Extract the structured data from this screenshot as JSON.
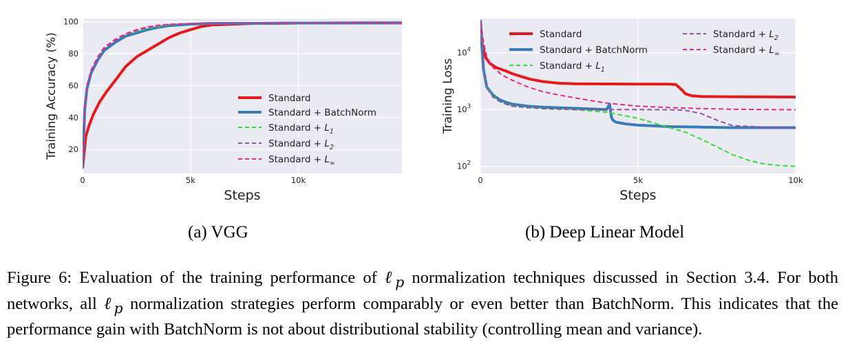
{
  "chart_data": [
    {
      "type": "line",
      "subcaption": "(a) VGG",
      "xlabel": "Steps",
      "ylabel": "Training Accuracy (%)",
      "xlim": [
        0,
        14800
      ],
      "ylim": [
        5,
        102
      ],
      "xticks": [
        0,
        5000,
        10000
      ],
      "xtick_labels": [
        "0",
        "5k",
        "10k"
      ],
      "yticks": [
        20,
        40,
        60,
        80,
        100
      ],
      "ytick_labels": [
        "20",
        "40",
        "60",
        "80",
        "100"
      ],
      "grid": true,
      "legend_position": "lower-right",
      "series": [
        {
          "name": "Standard",
          "color": "#e41a1c",
          "style": "solid",
          "width": 4,
          "legend_sub": "",
          "x": [
            0,
            150,
            300,
            500,
            800,
            1100,
            1500,
            2000,
            2500,
            3000,
            3500,
            4000,
            4500,
            5000,
            5500,
            6000,
            7000,
            8000,
            9000,
            10000,
            11000,
            12000,
            13000,
            14000,
            14800
          ],
          "y": [
            8,
            28,
            35,
            42,
            50,
            56,
            63,
            72,
            78,
            82,
            86,
            90,
            93,
            95,
            97,
            98,
            98.5,
            99,
            99,
            99.2,
            99.2,
            99.3,
            99.3,
            99.3,
            99.3
          ]
        },
        {
          "name": "Standard + BatchNorm",
          "color": "#377eb8",
          "style": "solid",
          "width": 4,
          "legend_sub": "",
          "x": [
            0,
            100,
            200,
            400,
            700,
            1000,
            1500,
            2000,
            2500,
            3000,
            3500,
            4000,
            4500,
            5000,
            6000,
            8000,
            10000,
            12000,
            14800
          ],
          "y": [
            8,
            45,
            58,
            68,
            76,
            82,
            87,
            91,
            93,
            95,
            96.5,
            97.5,
            98,
            98.5,
            99,
            99,
            99.2,
            99.2,
            99.3
          ]
        },
        {
          "name": "Standard + ",
          "color": "#33dd33",
          "style": "dashed",
          "width": 2,
          "legend_sub": "1",
          "x": [
            0,
            100,
            200,
            400,
            700,
            1000,
            1500,
            2000,
            2500,
            3000,
            3500,
            4000,
            4500,
            5000,
            6000,
            8000,
            10000,
            12000,
            14800
          ],
          "y": [
            8,
            48,
            60,
            70,
            77,
            83,
            88,
            92,
            94,
            96,
            97,
            98,
            98.5,
            98.8,
            99,
            99,
            99.1,
            99.2,
            99.3
          ]
        },
        {
          "name": "Standard + ",
          "color": "#984ea3",
          "style": "dashed",
          "width": 2,
          "legend_sub": "2",
          "x": [
            0,
            100,
            200,
            400,
            700,
            1000,
            1500,
            2000,
            2500,
            3000,
            3500,
            4000,
            4500,
            5000,
            6000,
            8000,
            10000,
            12000,
            14800
          ],
          "y": [
            8,
            46,
            59,
            69,
            77,
            83,
            88,
            92,
            94.5,
            96.5,
            97.5,
            98.2,
            98.6,
            98.8,
            99,
            99.1,
            99.2,
            99.2,
            99.3
          ]
        },
        {
          "name": "Standard + ",
          "color": "#e7298a",
          "style": "dashed",
          "width": 2,
          "legend_sub": "∞",
          "x": [
            0,
            100,
            200,
            400,
            700,
            1000,
            1500,
            2000,
            2500,
            3000,
            3500,
            4000,
            4500,
            5000,
            6000,
            8000,
            10000,
            12000,
            14800
          ],
          "y": [
            8,
            47,
            60,
            70,
            78,
            84,
            89,
            92.5,
            95,
            96.8,
            97.8,
            98.4,
            98.7,
            98.9,
            99,
            99.1,
            99.2,
            99.3,
            99.3
          ]
        }
      ]
    },
    {
      "type": "line",
      "subcaption": "(b) Deep Linear Model",
      "xlabel": "Steps",
      "ylabel": "Training Loss",
      "yscale": "log",
      "xlim": [
        0,
        10000
      ],
      "ylim": [
        75,
        40000
      ],
      "xticks": [
        0,
        5000,
        10000
      ],
      "xtick_labels": [
        "0",
        "5k",
        "10k"
      ],
      "yticks": [
        100,
        1000,
        10000
      ],
      "ytick_labels": [
        "10",
        "10",
        "10"
      ],
      "ytick_exponents": [
        "2",
        "3",
        "4"
      ],
      "grid": true,
      "legend_position": "top",
      "series": [
        {
          "name": "Standard",
          "color": "#e41a1c",
          "style": "solid",
          "width": 4,
          "legend_sub": "",
          "x": [
            0,
            50,
            150,
            300,
            500,
            800,
            1000,
            1300,
            1600,
            2000,
            2500,
            3000,
            4000,
            5000,
            6000,
            6200,
            6400,
            6500,
            6700,
            7000,
            8000,
            9000,
            10000
          ],
          "y": [
            35000,
            15000,
            8500,
            6500,
            5500,
            4800,
            4300,
            3800,
            3400,
            3100,
            2900,
            2850,
            2820,
            2810,
            2800,
            2750,
            2200,
            1900,
            1750,
            1700,
            1680,
            1670,
            1660
          ]
        },
        {
          "name": "Standard + BatchNorm",
          "color": "#377eb8",
          "style": "solid",
          "width": 4,
          "legend_sub": "",
          "x": [
            0,
            50,
            100,
            200,
            400,
            600,
            800,
            1000,
            1500,
            2000,
            3000,
            4000,
            4100,
            4150,
            4200,
            4300,
            4600,
            5000,
            6000,
            7000,
            8000,
            9000,
            10000
          ],
          "y": [
            38000,
            12000,
            5000,
            2500,
            1800,
            1500,
            1350,
            1250,
            1150,
            1100,
            1050,
            1000,
            1250,
            750,
            650,
            600,
            560,
            530,
            500,
            490,
            480,
            480,
            480
          ]
        },
        {
          "name": "Standard + ",
          "color": "#33dd33",
          "style": "dashed",
          "width": 2,
          "legend_sub": "1",
          "x": [
            0,
            50,
            100,
            200,
            400,
            600,
            800,
            1000,
            1500,
            2000,
            3000,
            4000,
            5000,
            6000,
            6500,
            7000,
            7500,
            8000,
            8500,
            9000,
            9500,
            10000
          ],
          "y": [
            35000,
            11000,
            5000,
            2500,
            1700,
            1400,
            1250,
            1150,
            1080,
            1030,
            990,
            900,
            700,
            480,
            400,
            300,
            220,
            160,
            128,
            110,
            103,
            100
          ]
        },
        {
          "name": "Standard + ",
          "color": "#984ea3",
          "style": "dashed",
          "width": 2,
          "legend_sub": "2",
          "x": [
            0,
            50,
            100,
            200,
            400,
            600,
            800,
            1000,
            1500,
            2000,
            3000,
            4000,
            5000,
            6000,
            6500,
            7000,
            7500,
            8000,
            9000,
            10000
          ],
          "y": [
            36000,
            11500,
            5000,
            2400,
            1650,
            1400,
            1250,
            1150,
            1080,
            1040,
            1000,
            1000,
            1000,
            990,
            970,
            850,
            650,
            520,
            490,
            480
          ]
        },
        {
          "name": "Standard + ",
          "color": "#e7298a",
          "style": "dashed",
          "width": 2,
          "legend_sub": "∞",
          "x": [
            0,
            50,
            100,
            200,
            400,
            700,
            1000,
            1500,
            2000,
            2500,
            3000,
            4000,
            5000,
            6000,
            7000,
            8000,
            9000,
            10000
          ],
          "y": [
            34000,
            24000,
            15000,
            8500,
            5500,
            4000,
            3300,
            2500,
            2050,
            1800,
            1600,
            1300,
            1150,
            1080,
            1040,
            1010,
            1000,
            990
          ]
        }
      ]
    }
  ],
  "caption": {
    "part1": "Figure 6:  Evaluation of the training performance of ",
    "sym1": "ℓ",
    "sub1": "p",
    "part2": " normalization techniques discussed in Section 3.4. For both networks, all ",
    "sym2": "ℓ",
    "sub2": "p",
    "part3": " normalization strategies perform comparably or even better than BatchNorm. This indicates that the performance gain with BatchNorm is not about distributional stability (controlling mean and variance)."
  }
}
